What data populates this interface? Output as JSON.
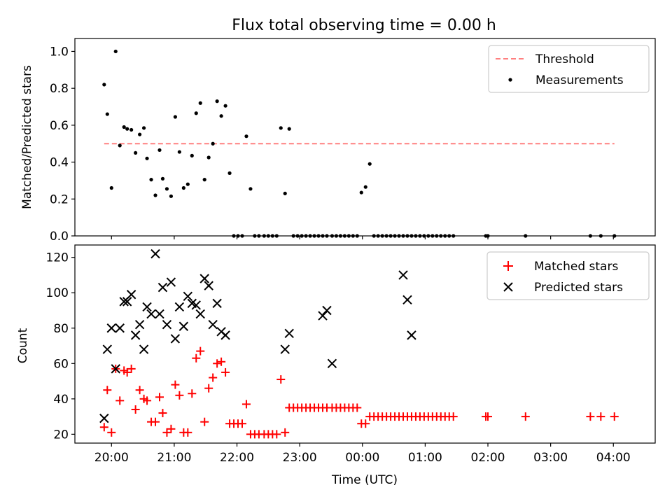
{
  "title": "Flux total observing time = 0.00 h",
  "chart_data": [
    {
      "type": "scatter",
      "title": "Flux total observing time = 0.00 h",
      "xlabel": "",
      "ylabel": "Matched/Predicted stars",
      "ylim": [
        0,
        1.07
      ],
      "yticks": [
        "0.0",
        "0.2",
        "0.4",
        "0.6",
        "0.8",
        "1.0"
      ],
      "ytick_values": [
        0,
        0.2,
        0.4,
        0.6,
        0.8,
        1.0
      ],
      "legend": "top-right",
      "threshold": {
        "name": "Threshold",
        "value": 0.5,
        "x_start": "19:53",
        "x_end": "04:01",
        "color": "#ff8080"
      },
      "series": [
        {
          "name": "Measurements",
          "color": "#000000",
          "x": [
            "19:53",
            "19:56",
            "20:00",
            "20:04",
            "20:08",
            "20:12",
            "20:15",
            "20:19",
            "20:23",
            "20:27",
            "20:31",
            "20:34",
            "20:38",
            "20:42",
            "20:46",
            "20:49",
            "20:53",
            "20:57",
            "21:01",
            "21:05",
            "21:09",
            "21:13",
            "21:17",
            "21:21",
            "21:25",
            "21:29",
            "21:33",
            "21:37",
            "21:41",
            "21:45",
            "21:49",
            "21:53",
            "21:57",
            "22:01",
            "22:05",
            "22:09",
            "22:13",
            "22:17",
            "22:21",
            "22:26",
            "22:30",
            "22:34",
            "22:38",
            "22:42",
            "22:46",
            "22:50",
            "22:54",
            "22:58",
            "23:02",
            "23:06",
            "23:10",
            "23:14",
            "23:18",
            "23:22",
            "23:26",
            "23:31",
            "23:35",
            "23:39",
            "23:43",
            "23:47",
            "23:51",
            "23:55",
            "23:59",
            "00:03",
            "00:07",
            "00:11",
            "00:15",
            "00:19",
            "00:23",
            "00:27",
            "00:31",
            "00:35",
            "00:39",
            "00:43",
            "00:47",
            "00:51",
            "00:55",
            "00:59",
            "01:03",
            "01:07",
            "01:11",
            "01:15",
            "01:19",
            "01:23",
            "01:27",
            "01:58",
            "02:00",
            "02:36",
            "03:38",
            "03:48",
            "04:01"
          ],
          "y": [
            0.82,
            0.66,
            0.26,
            1.0,
            0.49,
            0.59,
            0.58,
            0.575,
            0.45,
            0.55,
            0.585,
            0.42,
            0.305,
            0.22,
            0.465,
            0.31,
            0.255,
            0.215,
            0.645,
            0.455,
            0.26,
            0.28,
            0.435,
            0.665,
            0.72,
            0.305,
            0.425,
            0.5,
            0.73,
            0.65,
            0.705,
            0.34,
            0,
            0,
            0,
            0.54,
            0.255,
            0,
            0,
            0,
            0,
            0,
            0,
            0.585,
            0.23,
            0.58,
            0,
            0,
            0,
            0,
            0,
            0,
            0,
            0,
            0,
            0,
            0,
            0,
            0,
            0,
            0,
            0,
            0.235,
            0.265,
            0.39,
            0,
            0,
            0,
            0,
            0,
            0,
            0,
            0,
            0,
            0,
            0,
            0,
            0,
            0,
            0,
            0,
            0,
            0,
            0,
            0,
            0,
            0,
            0,
            0,
            0,
            0
          ]
        }
      ]
    },
    {
      "type": "scatter",
      "xlabel": "Time (UTC)",
      "ylabel": "Count",
      "ylim": [
        15,
        127
      ],
      "yticks": [
        "20",
        "40",
        "60",
        "80",
        "100",
        "120"
      ],
      "ytick_values": [
        20,
        40,
        60,
        80,
        100,
        120
      ],
      "xlim": [
        "19:25",
        "04:40"
      ],
      "xticks": [
        "20:00",
        "21:00",
        "22:00",
        "23:00",
        "00:00",
        "01:00",
        "02:00",
        "03:00",
        "04:00"
      ],
      "legend": "top-right",
      "series": [
        {
          "name": "Matched stars",
          "marker": "+",
          "color": "#ff0000",
          "x": [
            "19:53",
            "19:56",
            "20:00",
            "20:04",
            "20:08",
            "20:12",
            "20:15",
            "20:19",
            "20:23",
            "20:27",
            "20:31",
            "20:34",
            "20:38",
            "20:42",
            "20:46",
            "20:49",
            "20:53",
            "20:57",
            "21:01",
            "21:05",
            "21:09",
            "21:13",
            "21:17",
            "21:21",
            "21:25",
            "21:29",
            "21:33",
            "21:37",
            "21:41",
            "21:45",
            "21:49",
            "21:53",
            "21:57",
            "22:01",
            "22:05",
            "22:09",
            "22:13",
            "22:17",
            "22:21",
            "22:26",
            "22:30",
            "22:34",
            "22:38",
            "22:42",
            "22:46",
            "22:50",
            "22:54",
            "22:58",
            "23:02",
            "23:06",
            "23:10",
            "23:14",
            "23:18",
            "23:22",
            "23:26",
            "23:31",
            "23:35",
            "23:39",
            "23:43",
            "23:47",
            "23:51",
            "23:55",
            "23:59",
            "00:03",
            "00:07",
            "00:11",
            "00:15",
            "00:19",
            "00:23",
            "00:27",
            "00:31",
            "00:35",
            "00:39",
            "00:43",
            "00:47",
            "00:51",
            "00:55",
            "00:59",
            "01:03",
            "01:07",
            "01:11",
            "01:15",
            "01:19",
            "01:23",
            "01:27",
            "01:58",
            "02:00",
            "02:36",
            "03:38",
            "03:48",
            "04:01"
          ],
          "y": [
            24,
            45,
            21,
            57,
            39,
            56,
            55,
            57,
            34,
            45,
            40,
            39,
            27,
            27,
            41,
            32,
            21,
            23,
            48,
            42,
            21,
            21,
            43,
            63,
            67,
            27,
            46,
            52,
            60,
            61,
            55,
            26,
            26,
            26,
            26,
            37,
            20,
            20,
            20,
            20,
            20,
            20,
            20,
            51,
            21,
            35,
            35,
            35,
            35,
            35,
            35,
            35,
            35,
            35,
            35,
            35,
            35,
            35,
            35,
            35,
            35,
            35,
            26,
            26,
            30,
            30,
            30,
            30,
            30,
            30,
            30,
            30,
            30,
            30,
            30,
            30,
            30,
            30,
            30,
            30,
            30,
            30,
            30,
            30,
            30,
            30,
            30,
            30,
            30,
            30,
            30
          ]
        },
        {
          "name": "Predicted stars",
          "marker": "x",
          "color": "#000000",
          "x": [
            "19:53",
            "19:56",
            "20:00",
            "20:04",
            "20:08",
            "20:12",
            "20:15",
            "20:19",
            "20:23",
            "20:27",
            "20:31",
            "20:34",
            "20:38",
            "20:42",
            "20:46",
            "20:49",
            "20:53",
            "20:57",
            "21:01",
            "21:05",
            "21:09",
            "21:13",
            "21:17",
            "21:21",
            "21:25",
            "21:29",
            "21:33",
            "21:37",
            "21:41",
            "21:45",
            "21:49",
            "22:46",
            "22:50",
            "23:22",
            "23:26",
            "23:31",
            "00:39",
            "00:43",
            "00:47"
          ],
          "y": [
            29,
            68,
            80,
            57,
            80,
            95,
            95,
            99,
            76,
            82,
            68,
            92,
            88,
            122,
            88,
            103,
            82,
            106,
            74,
            92,
            81,
            98,
            94,
            93,
            88,
            108,
            104,
            82,
            94,
            78,
            76,
            68,
            77,
            87,
            90,
            60,
            110,
            96,
            76
          ]
        }
      ]
    }
  ]
}
